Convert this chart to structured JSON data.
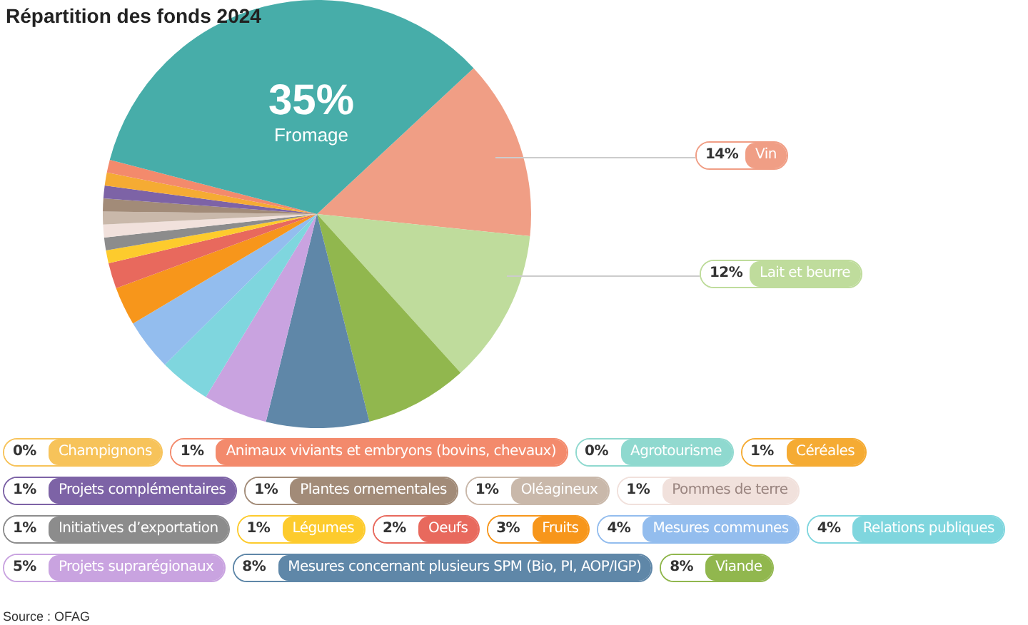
{
  "chart_data": {
    "type": "pie",
    "title": "Répartition des fonds 2024",
    "categories": [
      "Vin",
      "Lait et beurre",
      "Viande",
      "Mesures concernant plusieurs SPM (Bio, PI, AOP/IGP)",
      "Projets suprarégionaux",
      "Relations publiques",
      "Mesures communes",
      "Fruits",
      "Oeufs",
      "Légumes",
      "Initiatives d’exportation",
      "Pommes de terre",
      "Oléagineux",
      "Plantes ornementales",
      "Projets complémentaires",
      "Céréales",
      "Agrotourisme",
      "Animaux viviants et embryons (bovins, chevaux)",
      "Champignons",
      "Fromage"
    ],
    "values": [
      14,
      12,
      8,
      8,
      5,
      4,
      4,
      3,
      2,
      1,
      1,
      1,
      1,
      1,
      1,
      1,
      0,
      1,
      0,
      35
    ],
    "value_labels": [
      "14%",
      "12%",
      "8%",
      "8%",
      "5%",
      "4%",
      "4%",
      "3%",
      "2%",
      "1%",
      "1%",
      "1%",
      "1%",
      "1%",
      "1%",
      "1%",
      "0%",
      "1%",
      "0%",
      "35%"
    ],
    "colors": [
      "#f09e85",
      "#bfdc9c",
      "#91b74e",
      "#5f87a8",
      "#c9a3e0",
      "#7fd6de",
      "#93bdee",
      "#f7961b",
      "#e8695d",
      "#fdcb2d",
      "#8c8c8c",
      "#f1e1dc",
      "#c9b8aa",
      "#a28b78",
      "#7d63a6",
      "#f5ab33",
      "#8fd9cf",
      "#f38a6c",
      "#f7c35a",
      "#47ada9"
    ],
    "legend": "bottom",
    "annotations": [
      "Source : OFAG"
    ]
  }
}
